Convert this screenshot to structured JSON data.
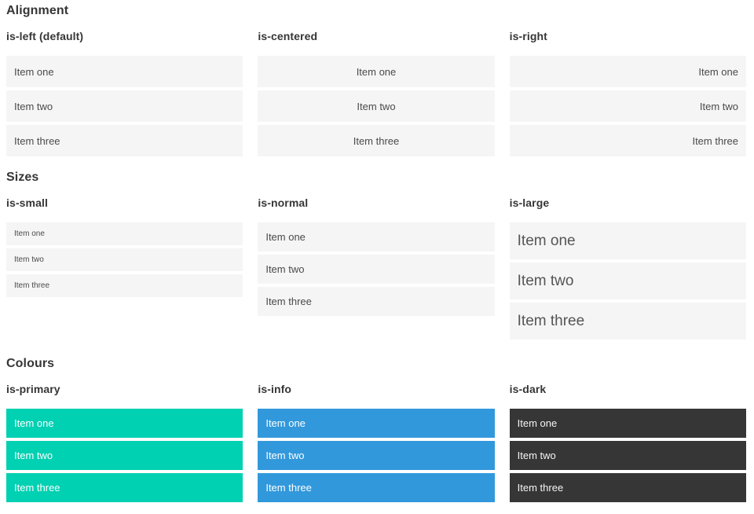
{
  "colors": {
    "primary": "#00d1b2",
    "info": "#3298dc",
    "dark": "#363636",
    "light_item_bg": "#f5f5f5",
    "item_text": "#4a4a4a",
    "heading_text": "#363636"
  },
  "sections": [
    {
      "title": "Alignment",
      "columns": [
        {
          "label": "is-left (default)",
          "items": [
            "Item one",
            "Item two",
            "Item three"
          ]
        },
        {
          "label": "is-centered",
          "items": [
            "Item one",
            "Item two",
            "Item three"
          ]
        },
        {
          "label": "is-right",
          "items": [
            "Item one",
            "Item two",
            "Item three"
          ]
        }
      ]
    },
    {
      "title": "Sizes",
      "columns": [
        {
          "label": "is-small",
          "items": [
            "Item one",
            "Item two",
            "Item three"
          ]
        },
        {
          "label": "is-normal",
          "items": [
            "Item one",
            "Item two",
            "Item three"
          ]
        },
        {
          "label": "is-large",
          "items": [
            "Item one",
            "Item two",
            "Item three"
          ]
        }
      ]
    },
    {
      "title": "Colours",
      "columns": [
        {
          "label": "is-primary",
          "items": [
            "Item one",
            "Item two",
            "Item three"
          ]
        },
        {
          "label": "is-info",
          "items": [
            "Item one",
            "Item two",
            "Item three"
          ]
        },
        {
          "label": "is-dark",
          "items": [
            "Item one",
            "Item two",
            "Item three"
          ]
        }
      ]
    }
  ]
}
